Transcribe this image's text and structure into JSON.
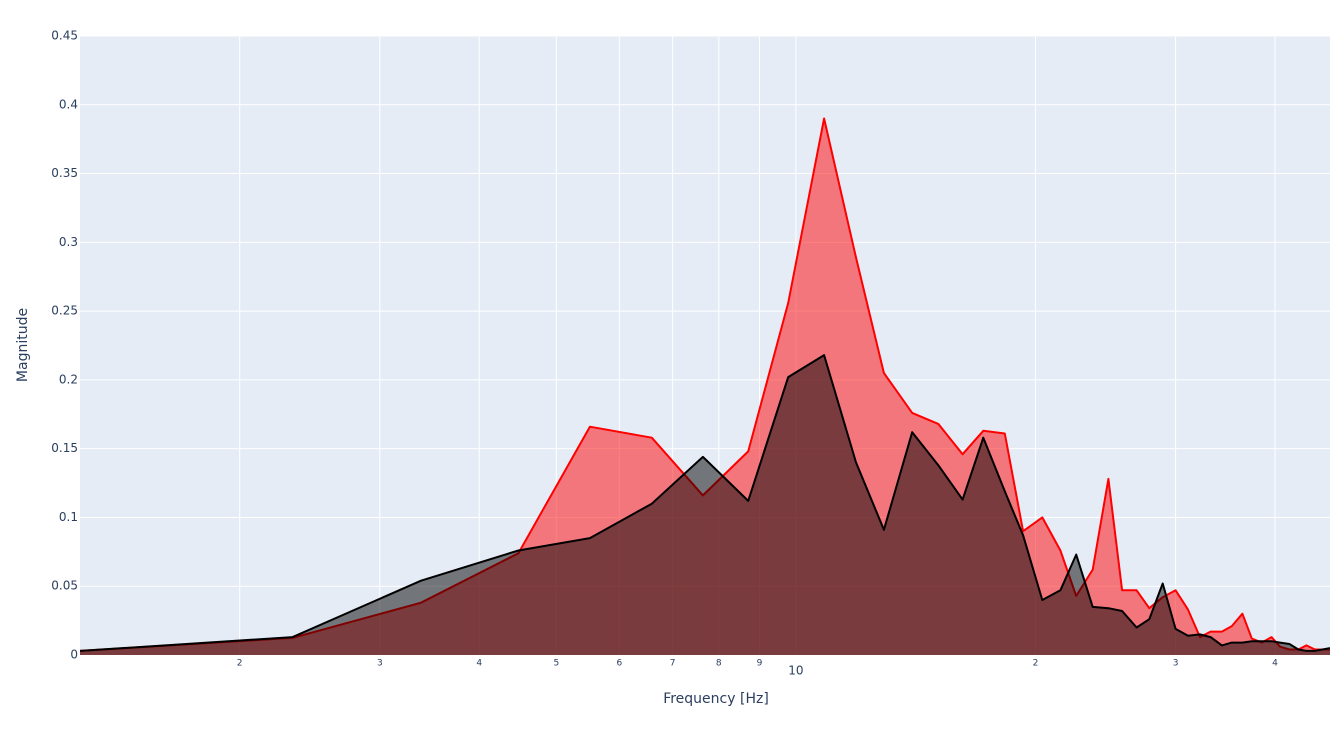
{
  "chart_data": {
    "type": "area",
    "xlabel": "Frequency [Hz]",
    "ylabel": "Magnitude",
    "x": [
      1.26,
      2.33,
      3.38,
      4.48,
      5.51,
      6.59,
      7.64,
      8.71,
      9.78,
      10.85,
      11.9,
      12.9,
      14.0,
      15.1,
      16.2,
      17.2,
      18.3,
      19.3,
      20.4,
      21.5,
      22.5,
      23.6,
      24.7,
      25.7,
      26.8,
      27.8,
      28.9,
      30.0,
      31.1,
      32.2,
      33.2,
      34.3,
      35.3,
      36.4,
      37.4,
      38.5,
      39.6,
      40.6,
      41.7,
      42.8,
      43.8,
      44.9,
      46.9
    ],
    "series": [
      {
        "color": "#ff0000",
        "values": [
          0.003,
          0.0124,
          0.038,
          0.074,
          0.166,
          0.158,
          0.116,
          0.148,
          0.256,
          0.39,
          0.289,
          0.205,
          0.176,
          0.168,
          0.146,
          0.163,
          0.161,
          0.09,
          0.1,
          0.076,
          0.043,
          0.062,
          0.128,
          0.047,
          0.047,
          0.034,
          0.042,
          0.047,
          0.033,
          0.013,
          0.017,
          0.017,
          0.021,
          0.03,
          0.012,
          0.009,
          0.013,
          0.006,
          0.004,
          0.004,
          0.007,
          0.004,
          0.004
        ]
      },
      {
        "color": "#000000",
        "values": [
          0.003,
          0.013,
          0.054,
          0.076,
          0.085,
          0.11,
          0.144,
          0.112,
          0.202,
          0.218,
          0.14,
          0.091,
          0.162,
          0.138,
          0.113,
          0.158,
          0.119,
          0.087,
          0.04,
          0.047,
          0.073,
          0.035,
          0.034,
          0.032,
          0.02,
          0.026,
          0.052,
          0.019,
          0.014,
          0.015,
          0.013,
          0.007,
          0.009,
          0.009,
          0.01,
          0.01,
          0.01,
          0.009,
          0.008,
          0.004,
          0.003,
          0.003,
          0.005
        ]
      }
    ],
    "xscale": "log",
    "xlim": [
      1.26,
      46.9
    ],
    "xticks": [
      2,
      3,
      4,
      5,
      6,
      7,
      8,
      9,
      10,
      {
        "value": 20,
        "label": "2"
      },
      {
        "value": 30,
        "label": "3"
      },
      {
        "value": 40,
        "label": "4"
      }
    ],
    "ylim": [
      0,
      0.45
    ],
    "yticks": [
      0,
      0.05,
      0.1,
      0.15,
      0.2,
      0.25,
      0.3,
      0.35,
      0.4,
      0.45
    ],
    "grid": true
  }
}
